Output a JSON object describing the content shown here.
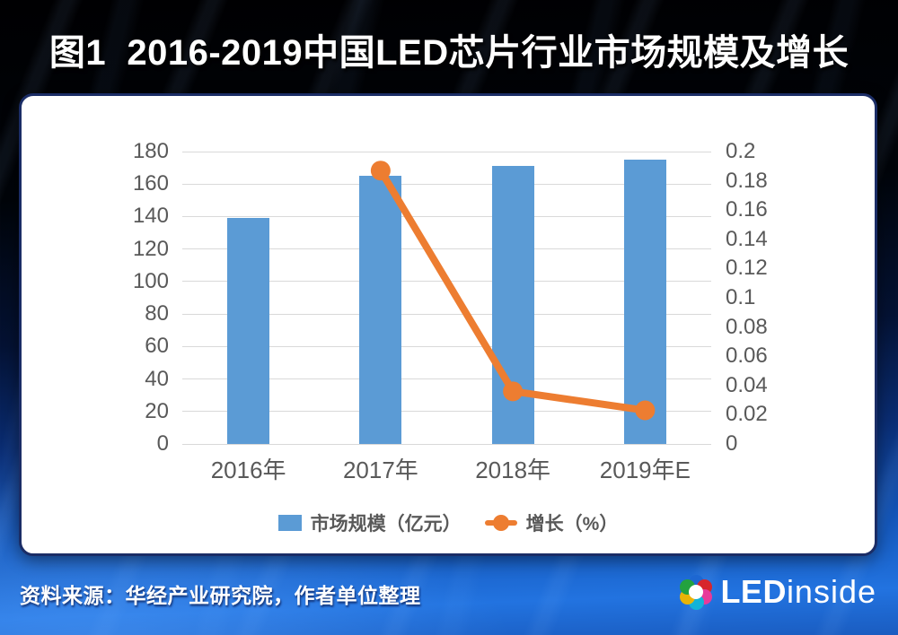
{
  "title": "图1  2016-2019中国LED芯片行业市场规模及增长",
  "chart_data": {
    "type": "bar",
    "subtype": "bar-line-combo",
    "title": "图1 2016-2019中国LED芯片行业市场规模及增长",
    "categories": [
      "2016年",
      "2017年",
      "2018年",
      "2019年E"
    ],
    "series": [
      {
        "name": "市场规模（亿元）",
        "kind": "bar",
        "axis": "left",
        "color": "#5B9BD5",
        "values": [
          139,
          165,
          171,
          175
        ]
      },
      {
        "name": "增长（%）",
        "kind": "line",
        "axis": "right",
        "color": "#ED7D31",
        "values": [
          null,
          0.187,
          0.036,
          0.023
        ]
      }
    ],
    "left_axis": {
      "min": 0,
      "max": 180,
      "step": 20,
      "ticks": [
        "180",
        "160",
        "140",
        "120",
        "100",
        "80",
        "60",
        "40",
        "20",
        "0"
      ]
    },
    "right_axis": {
      "min": 0,
      "max": 0.2,
      "step": 0.02,
      "ticks": [
        "0.2",
        "0.18",
        "0.16",
        "0.14",
        "0.12",
        "0.1",
        "0.08",
        "0.06",
        "0.04",
        "0.02",
        "0"
      ]
    },
    "gridlines": true,
    "legend_position": "bottom"
  },
  "footer": {
    "source": "资料来源：华经产业研究院，作者单位整理"
  },
  "logo": {
    "text_bold": "LED",
    "text_light": "inside",
    "petal_colors": [
      "#1d67d2",
      "#d7262c",
      "#e83a9a",
      "#12b3d8",
      "#eab308",
      "#23a23f"
    ],
    "center_color": "#ffffff"
  },
  "colors": {
    "bar": "#5B9BD5",
    "line": "#ED7D31",
    "grid": "#D9D9D9",
    "axis_text": "#595959",
    "panel_border": "#1B2D66",
    "title_text": "#FFFFFF"
  }
}
